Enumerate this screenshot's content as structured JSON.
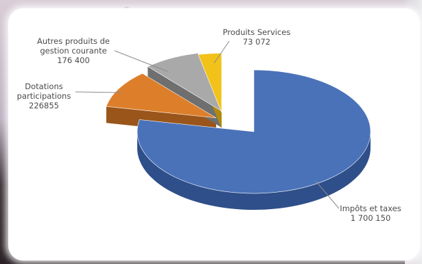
{
  "chart_data": {
    "type": "pie",
    "title": "",
    "categories": [
      "Impôts et taxes",
      "Dotations participations",
      "Autres produits de gestion courante",
      "Produits Services"
    ],
    "values": [
      1700150,
      226855,
      176400,
      73072
    ],
    "display_values": [
      "1 700 150",
      "226855",
      "176 400",
      "73 072"
    ],
    "label_lines": [
      [
        "Impôts et taxes",
        "1 700 150"
      ],
      [
        "Dotations",
        "participations",
        "226855"
      ],
      [
        "Autres produits de",
        "gestion courante",
        "176 400"
      ],
      [
        "Produits Services",
        "73 072"
      ]
    ],
    "colors": [
      "#4a72b8",
      "#dd7f2a",
      "#a9a9a9",
      "#f2c21a"
    ],
    "side_colors": [
      "#2f4f8a",
      "#9a551a",
      "#6f6f6f",
      "#b08a10"
    ],
    "style": "3d-exploded",
    "legend": "none"
  }
}
